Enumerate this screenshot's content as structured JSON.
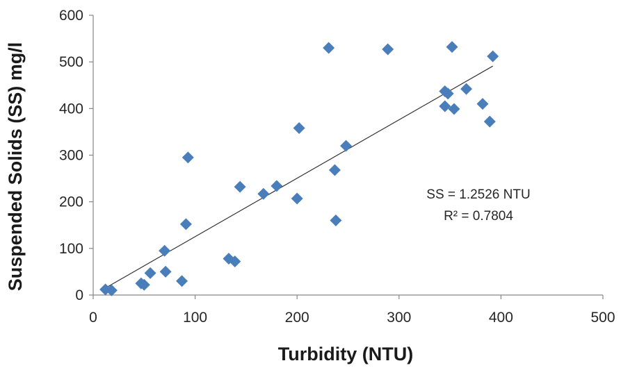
{
  "chart_data": {
    "type": "scatter",
    "title": "",
    "xlabel": "Turbidity (NTU)",
    "ylabel": "Suspended Solids (SS) mg/l",
    "xlim": [
      0,
      500
    ],
    "ylim": [
      0,
      600
    ],
    "x_ticks": [
      0,
      100,
      200,
      300,
      400,
      500
    ],
    "y_ticks": [
      0,
      100,
      200,
      300,
      400,
      500,
      600
    ],
    "grid": false,
    "marker": "diamond",
    "marker_color": "#4a7ebb",
    "trendline": {
      "slope": 1.2526,
      "intercept": 0,
      "x_range": [
        10,
        392
      ],
      "color": "#333333"
    },
    "annotations": [
      "SS = 1.2526 NTU",
      "R² = 0.7804"
    ],
    "series": [
      {
        "points": [
          [
            12,
            12
          ],
          [
            18,
            10
          ],
          [
            47,
            25
          ],
          [
            50,
            22
          ],
          [
            56,
            47
          ],
          [
            70,
            95
          ],
          [
            71,
            50
          ],
          [
            87,
            30
          ],
          [
            91,
            152
          ],
          [
            93,
            295
          ],
          [
            133,
            78
          ],
          [
            139,
            72
          ],
          [
            144,
            232
          ],
          [
            167,
            217
          ],
          [
            180,
            234
          ],
          [
            200,
            207
          ],
          [
            202,
            358
          ],
          [
            231,
            530
          ],
          [
            237,
            268
          ],
          [
            238,
            160
          ],
          [
            248,
            320
          ],
          [
            289,
            527
          ],
          [
            345,
            437
          ],
          [
            345,
            405
          ],
          [
            348,
            432
          ],
          [
            352,
            532
          ],
          [
            354,
            399
          ],
          [
            366,
            442
          ],
          [
            382,
            410
          ],
          [
            389,
            372
          ],
          [
            392,
            512
          ]
        ]
      }
    ]
  }
}
